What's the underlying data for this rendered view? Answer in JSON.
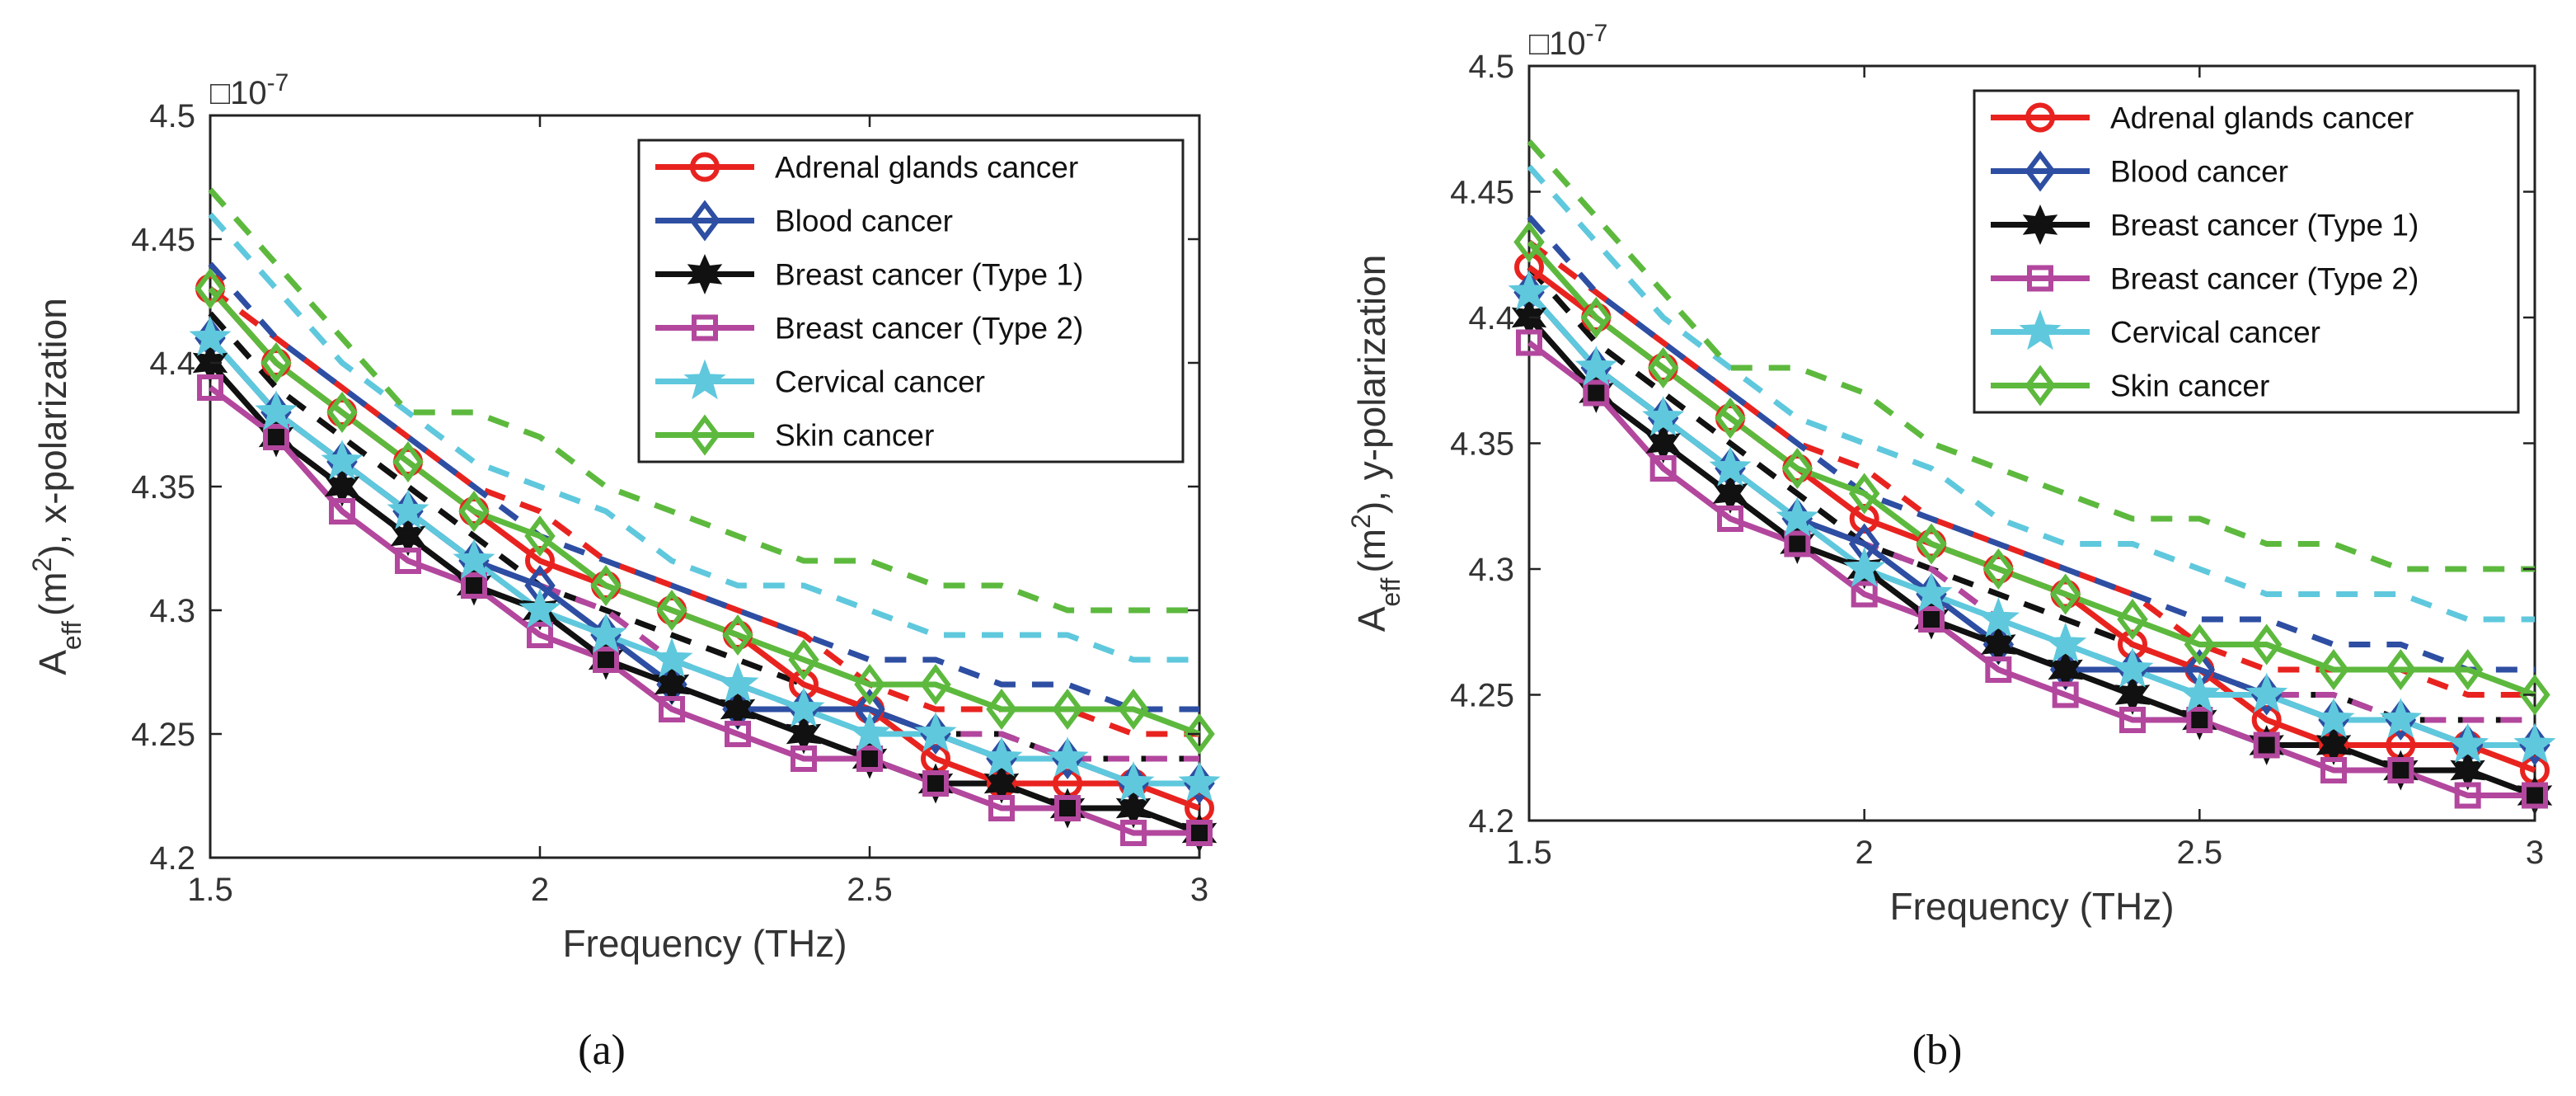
{
  "chart_data": [
    {
      "type": "line",
      "id": "a",
      "caption": "(a)",
      "xlabel": "Frequency (THz)",
      "ylabel_main": "A",
      "ylabel_sub": "eff",
      "ylabel_unit": "(m",
      "ylabel_sup": "2",
      "ylabel_tail": "), x-polarization",
      "exponent_box": "□",
      "exponent_base": "10",
      "exponent_power": "-7",
      "xlim": [
        1.5,
        3
      ],
      "ylim": [
        4.2,
        4.5
      ],
      "xticks": [
        1.5,
        2,
        2.5,
        3
      ],
      "xtick_labels": [
        "1.5",
        "2",
        "2.5",
        "3"
      ],
      "yticks": [
        4.2,
        4.25,
        4.3,
        4.35,
        4.4,
        4.45,
        4.5
      ],
      "ytick_labels": [
        "4.2",
        "4.25",
        "4.3",
        "4.35",
        "4.4",
        "4.45",
        "4.5"
      ],
      "legend_position": "top-right",
      "x": [
        1.5,
        1.6,
        1.7,
        1.8,
        1.9,
        2.0,
        2.1,
        2.2,
        2.3,
        2.4,
        2.5,
        2.6,
        2.7,
        2.8,
        2.9,
        3.0
      ],
      "series": [
        {
          "name": "Adrenal glands cancer",
          "color": "#e8231f",
          "marker": "circle",
          "values": [
            4.43,
            4.4,
            4.38,
            4.36,
            4.34,
            4.32,
            4.31,
            4.3,
            4.29,
            4.27,
            4.26,
            4.24,
            4.23,
            4.23,
            4.23,
            4.22
          ],
          "dashed": [
            4.43,
            4.41,
            4.39,
            4.37,
            4.35,
            4.34,
            4.32,
            4.31,
            4.3,
            4.29,
            4.27,
            4.26,
            4.26,
            4.26,
            4.25,
            4.25
          ]
        },
        {
          "name": "Blood cancer",
          "color": "#2d4ea2",
          "marker": "diamond",
          "values": [
            4.41,
            4.38,
            4.36,
            4.34,
            4.32,
            4.31,
            4.29,
            4.27,
            4.26,
            4.26,
            4.26,
            4.25,
            4.24,
            4.24,
            4.23,
            4.23
          ],
          "dashed": [
            4.44,
            4.41,
            4.39,
            4.37,
            4.35,
            4.33,
            4.32,
            4.31,
            4.3,
            4.29,
            4.28,
            4.28,
            4.27,
            4.27,
            4.26,
            4.26
          ]
        },
        {
          "name": "Breast cancer (Type 1)",
          "color": "#111111",
          "marker": "hexagram",
          "values": [
            4.4,
            4.37,
            4.35,
            4.33,
            4.31,
            4.3,
            4.28,
            4.27,
            4.26,
            4.25,
            4.24,
            4.23,
            4.23,
            4.22,
            4.22,
            4.21
          ],
          "dashed": [
            4.42,
            4.39,
            4.37,
            4.35,
            4.33,
            4.31,
            4.3,
            4.29,
            4.28,
            4.27,
            4.26,
            4.25,
            4.25,
            4.24,
            4.24,
            4.24
          ]
        },
        {
          "name": "Breast cancer (Type 2)",
          "color": "#b2479d",
          "marker": "square",
          "values": [
            4.39,
            4.37,
            4.34,
            4.32,
            4.31,
            4.29,
            4.28,
            4.26,
            4.25,
            4.24,
            4.24,
            4.23,
            4.22,
            4.22,
            4.21,
            4.21
          ],
          "dashed": [
            4.41,
            4.38,
            4.36,
            4.34,
            4.32,
            4.31,
            4.3,
            4.28,
            4.27,
            4.26,
            4.26,
            4.25,
            4.25,
            4.24,
            4.24,
            4.24
          ]
        },
        {
          "name": "Cervical cancer",
          "color": "#5fc8dd",
          "marker": "pentagram",
          "values": [
            4.41,
            4.38,
            4.36,
            4.34,
            4.32,
            4.3,
            4.29,
            4.28,
            4.27,
            4.26,
            4.25,
            4.25,
            4.24,
            4.24,
            4.23,
            4.23
          ],
          "dashed": [
            4.46,
            4.43,
            4.4,
            4.38,
            4.36,
            4.35,
            4.34,
            4.32,
            4.31,
            4.31,
            4.3,
            4.29,
            4.29,
            4.29,
            4.28,
            4.28
          ]
        },
        {
          "name": "Skin cancer",
          "color": "#5db93e",
          "marker": "diamond",
          "values": [
            4.43,
            4.4,
            4.38,
            4.36,
            4.34,
            4.33,
            4.31,
            4.3,
            4.29,
            4.28,
            4.27,
            4.27,
            4.26,
            4.26,
            4.26,
            4.25
          ],
          "dashed": [
            4.47,
            4.44,
            4.41,
            4.38,
            4.38,
            4.37,
            4.35,
            4.34,
            4.33,
            4.32,
            4.32,
            4.31,
            4.31,
            4.3,
            4.3,
            4.3
          ]
        }
      ]
    },
    {
      "type": "line",
      "id": "b",
      "caption": "(b)",
      "xlabel": "Frequency (THz)",
      "ylabel_main": "A",
      "ylabel_sub": "eff",
      "ylabel_unit": "(m",
      "ylabel_sup": "2",
      "ylabel_tail": "), y-polarization",
      "exponent_box": "□",
      "exponent_base": "10",
      "exponent_power": "-7",
      "xlim": [
        1.5,
        3
      ],
      "ylim": [
        4.2,
        4.5
      ],
      "xticks": [
        1.5,
        2,
        2.5,
        3
      ],
      "xtick_labels": [
        "1.5",
        "2",
        "2.5",
        "3"
      ],
      "yticks": [
        4.2,
        4.25,
        4.3,
        4.35,
        4.4,
        4.45,
        4.5
      ],
      "ytick_labels": [
        "4.2",
        "4.25",
        "4.3",
        "4.35",
        "4.4",
        "4.45",
        "4.5"
      ],
      "legend_position": "top-right",
      "x": [
        1.5,
        1.6,
        1.7,
        1.8,
        1.9,
        2.0,
        2.1,
        2.2,
        2.3,
        2.4,
        2.5,
        2.6,
        2.7,
        2.8,
        2.9,
        3.0
      ],
      "series": [
        {
          "name": "Adrenal glands cancer",
          "color": "#e8231f",
          "marker": "circle",
          "values": [
            4.42,
            4.4,
            4.38,
            4.36,
            4.34,
            4.32,
            4.31,
            4.3,
            4.29,
            4.27,
            4.26,
            4.24,
            4.23,
            4.23,
            4.23,
            4.22
          ],
          "dashed": [
            4.43,
            4.41,
            4.39,
            4.37,
            4.35,
            4.34,
            4.32,
            4.31,
            4.3,
            4.29,
            4.27,
            4.26,
            4.26,
            4.26,
            4.25,
            4.25
          ]
        },
        {
          "name": "Blood cancer",
          "color": "#2d4ea2",
          "marker": "diamond",
          "values": [
            4.41,
            4.38,
            4.36,
            4.34,
            4.32,
            4.31,
            4.29,
            4.27,
            4.26,
            4.26,
            4.26,
            4.25,
            4.24,
            4.24,
            4.23,
            4.23
          ],
          "dashed": [
            4.44,
            4.41,
            4.39,
            4.37,
            4.35,
            4.33,
            4.32,
            4.31,
            4.3,
            4.29,
            4.28,
            4.28,
            4.27,
            4.27,
            4.26,
            4.26
          ]
        },
        {
          "name": "Breast cancer (Type 1)",
          "color": "#111111",
          "marker": "hexagram",
          "values": [
            4.4,
            4.37,
            4.35,
            4.33,
            4.31,
            4.3,
            4.28,
            4.27,
            4.26,
            4.25,
            4.24,
            4.23,
            4.23,
            4.22,
            4.22,
            4.21
          ],
          "dashed": [
            4.42,
            4.39,
            4.37,
            4.35,
            4.33,
            4.31,
            4.3,
            4.29,
            4.28,
            4.27,
            4.26,
            4.25,
            4.25,
            4.24,
            4.24,
            4.24
          ]
        },
        {
          "name": "Breast cancer (Type 2)",
          "color": "#b2479d",
          "marker": "square",
          "values": [
            4.39,
            4.37,
            4.34,
            4.32,
            4.31,
            4.29,
            4.28,
            4.26,
            4.25,
            4.24,
            4.24,
            4.23,
            4.22,
            4.22,
            4.21,
            4.21
          ],
          "dashed": [
            4.41,
            4.38,
            4.36,
            4.34,
            4.32,
            4.31,
            4.3,
            4.28,
            4.27,
            4.26,
            4.26,
            4.25,
            4.25,
            4.24,
            4.24,
            4.24
          ]
        },
        {
          "name": "Cervical cancer",
          "color": "#5fc8dd",
          "marker": "pentagram",
          "values": [
            4.41,
            4.38,
            4.36,
            4.34,
            4.32,
            4.3,
            4.29,
            4.28,
            4.27,
            4.26,
            4.25,
            4.25,
            4.24,
            4.24,
            4.23,
            4.23
          ],
          "dashed": [
            4.46,
            4.43,
            4.4,
            4.38,
            4.36,
            4.35,
            4.34,
            4.32,
            4.31,
            4.31,
            4.3,
            4.29,
            4.29,
            4.29,
            4.28,
            4.28
          ]
        },
        {
          "name": "Skin cancer",
          "color": "#5db93e",
          "marker": "diamond",
          "values": [
            4.43,
            4.4,
            4.38,
            4.36,
            4.34,
            4.33,
            4.31,
            4.3,
            4.29,
            4.28,
            4.27,
            4.27,
            4.26,
            4.26,
            4.26,
            4.25
          ],
          "dashed": [
            4.47,
            4.44,
            4.41,
            4.38,
            4.38,
            4.37,
            4.35,
            4.34,
            4.33,
            4.32,
            4.32,
            4.31,
            4.31,
            4.3,
            4.3,
            4.3
          ]
        }
      ]
    }
  ]
}
